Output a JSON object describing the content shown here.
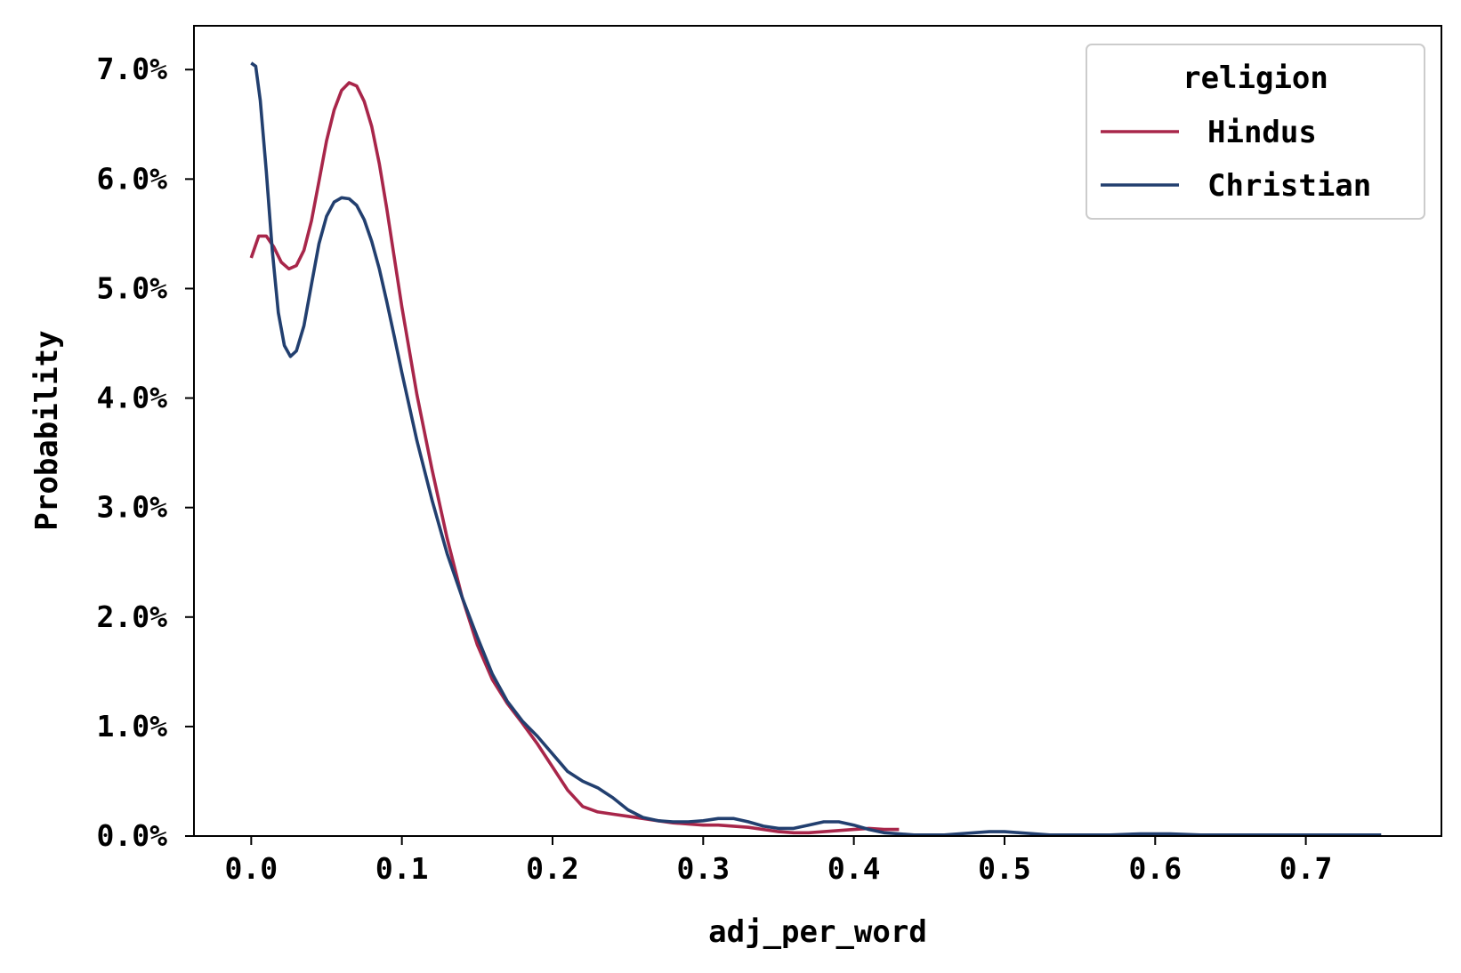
{
  "chart_data": {
    "type": "line",
    "title": "",
    "xlabel": "adj_per_word",
    "ylabel": "Probability",
    "xlim": [
      -0.038,
      0.79
    ],
    "ylim": [
      0,
      0.074
    ],
    "x_ticks": [
      0.0,
      0.1,
      0.2,
      0.3,
      0.4,
      0.5,
      0.6,
      0.7
    ],
    "x_tick_labels": [
      "0.0",
      "0.1",
      "0.2",
      "0.3",
      "0.4",
      "0.5",
      "0.6",
      "0.7"
    ],
    "y_ticks": [
      0.0,
      0.01,
      0.02,
      0.03,
      0.04,
      0.05,
      0.06,
      0.07
    ],
    "y_tick_labels": [
      "0.0%",
      "1.0%",
      "2.0%",
      "3.0%",
      "4.0%",
      "5.0%",
      "6.0%",
      "7.0%"
    ],
    "grid": false,
    "legend": {
      "title": "religion",
      "position": "top-right"
    },
    "series": [
      {
        "name": "Hindus",
        "color": "#a8264a",
        "points": [
          [
            0.0,
            0.0528
          ],
          [
            0.005,
            0.0548
          ],
          [
            0.01,
            0.0548
          ],
          [
            0.015,
            0.0538
          ],
          [
            0.02,
            0.0524
          ],
          [
            0.025,
            0.0518
          ],
          [
            0.03,
            0.0521
          ],
          [
            0.035,
            0.0535
          ],
          [
            0.04,
            0.0562
          ],
          [
            0.045,
            0.0598
          ],
          [
            0.05,
            0.0635
          ],
          [
            0.055,
            0.0663
          ],
          [
            0.06,
            0.0681
          ],
          [
            0.065,
            0.0688
          ],
          [
            0.07,
            0.0685
          ],
          [
            0.075,
            0.0671
          ],
          [
            0.08,
            0.0648
          ],
          [
            0.085,
            0.0614
          ],
          [
            0.09,
            0.0573
          ],
          [
            0.095,
            0.0528
          ],
          [
            0.1,
            0.0483
          ],
          [
            0.11,
            0.0403
          ],
          [
            0.12,
            0.0335
          ],
          [
            0.13,
            0.0272
          ],
          [
            0.14,
            0.0218
          ],
          [
            0.15,
            0.0175
          ],
          [
            0.16,
            0.0143
          ],
          [
            0.17,
            0.0121
          ],
          [
            0.18,
            0.0103
          ],
          [
            0.19,
            0.0084
          ],
          [
            0.2,
            0.0063
          ],
          [
            0.21,
            0.0042
          ],
          [
            0.22,
            0.0027
          ],
          [
            0.23,
            0.0022
          ],
          [
            0.24,
            0.002
          ],
          [
            0.25,
            0.0018
          ],
          [
            0.26,
            0.0016
          ],
          [
            0.27,
            0.0014
          ],
          [
            0.28,
            0.0012
          ],
          [
            0.29,
            0.0011
          ],
          [
            0.3,
            0.001
          ],
          [
            0.31,
            0.001
          ],
          [
            0.32,
            0.0009
          ],
          [
            0.33,
            0.0008
          ],
          [
            0.34,
            0.0006
          ],
          [
            0.35,
            0.0004
          ],
          [
            0.36,
            0.0003
          ],
          [
            0.37,
            0.0003
          ],
          [
            0.38,
            0.0004
          ],
          [
            0.39,
            0.0005
          ],
          [
            0.4,
            0.0006
          ],
          [
            0.41,
            0.0007
          ],
          [
            0.42,
            0.0006
          ],
          [
            0.43,
            0.0006
          ]
        ]
      },
      {
        "name": "Christian",
        "color": "#223f6f",
        "points": [
          [
            0.0,
            0.0706
          ],
          [
            0.003,
            0.0703
          ],
          [
            0.006,
            0.0672
          ],
          [
            0.01,
            0.0607
          ],
          [
            0.014,
            0.0535
          ],
          [
            0.018,
            0.0478
          ],
          [
            0.022,
            0.0448
          ],
          [
            0.026,
            0.0438
          ],
          [
            0.03,
            0.0443
          ],
          [
            0.035,
            0.0466
          ],
          [
            0.04,
            0.0504
          ],
          [
            0.045,
            0.0541
          ],
          [
            0.05,
            0.0566
          ],
          [
            0.055,
            0.0579
          ],
          [
            0.06,
            0.0583
          ],
          [
            0.065,
            0.0582
          ],
          [
            0.07,
            0.0576
          ],
          [
            0.075,
            0.0563
          ],
          [
            0.08,
            0.0543
          ],
          [
            0.085,
            0.0518
          ],
          [
            0.09,
            0.0488
          ],
          [
            0.095,
            0.0456
          ],
          [
            0.1,
            0.0423
          ],
          [
            0.11,
            0.0361
          ],
          [
            0.12,
            0.0307
          ],
          [
            0.13,
            0.0258
          ],
          [
            0.14,
            0.0218
          ],
          [
            0.15,
            0.0182
          ],
          [
            0.16,
            0.0148
          ],
          [
            0.17,
            0.0123
          ],
          [
            0.18,
            0.0105
          ],
          [
            0.19,
            0.0091
          ],
          [
            0.2,
            0.0075
          ],
          [
            0.21,
            0.0059
          ],
          [
            0.22,
            0.005
          ],
          [
            0.23,
            0.0044
          ],
          [
            0.24,
            0.0035
          ],
          [
            0.25,
            0.0024
          ],
          [
            0.26,
            0.0017
          ],
          [
            0.27,
            0.0014
          ],
          [
            0.28,
            0.0013
          ],
          [
            0.29,
            0.0013
          ],
          [
            0.3,
            0.0014
          ],
          [
            0.31,
            0.0016
          ],
          [
            0.32,
            0.0016
          ],
          [
            0.33,
            0.0013
          ],
          [
            0.34,
            0.0009
          ],
          [
            0.35,
            0.0007
          ],
          [
            0.36,
            0.0007
          ],
          [
            0.37,
            0.001
          ],
          [
            0.38,
            0.0013
          ],
          [
            0.39,
            0.0013
          ],
          [
            0.4,
            0.001
          ],
          [
            0.41,
            0.0006
          ],
          [
            0.42,
            0.0003
          ],
          [
            0.43,
            0.0002
          ],
          [
            0.44,
            0.0001
          ],
          [
            0.45,
            0.0001
          ],
          [
            0.46,
            0.0001
          ],
          [
            0.47,
            0.0002
          ],
          [
            0.48,
            0.0003
          ],
          [
            0.49,
            0.0004
          ],
          [
            0.5,
            0.0004
          ],
          [
            0.51,
            0.0003
          ],
          [
            0.52,
            0.0002
          ],
          [
            0.53,
            0.0001
          ],
          [
            0.55,
            0.0001
          ],
          [
            0.57,
            0.0001
          ],
          [
            0.59,
            0.0002
          ],
          [
            0.6,
            0.0002
          ],
          [
            0.61,
            0.0002
          ],
          [
            0.63,
            0.0001
          ],
          [
            0.65,
            0.0001
          ],
          [
            0.7,
            0.0001
          ],
          [
            0.75,
            0.0001
          ]
        ]
      }
    ]
  }
}
